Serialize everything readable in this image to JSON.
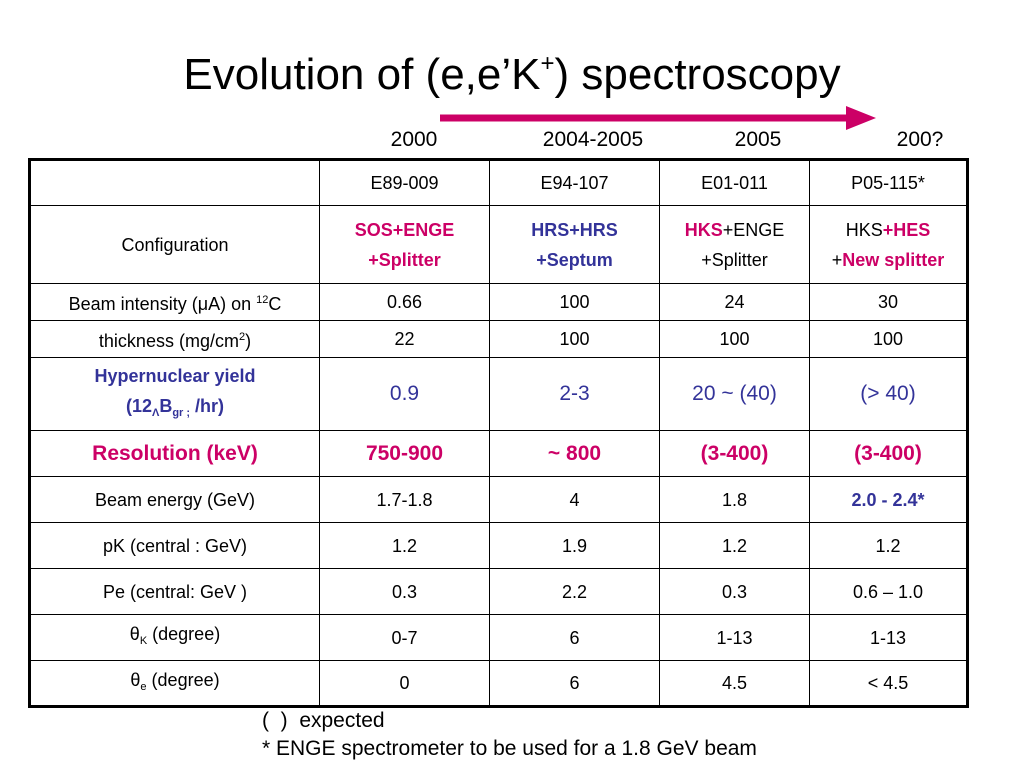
{
  "title": {
    "main": "Evolution of (e,e’K",
    "sup": "+",
    "tail": ") spectroscopy"
  },
  "colors": {
    "arrow": "#cc0066",
    "magenta": "#cc0066",
    "blue": "#333399"
  },
  "years": [
    "2000",
    "2004-2005",
    "2005",
    "200?"
  ],
  "experiments": [
    "E89-009",
    "E94-107",
    "E01-011",
    "P05-115*"
  ],
  "config": {
    "label": "Configuration",
    "c1": {
      "a": "SOS+ENGE",
      "b": "+Splitter"
    },
    "c2": {
      "a": "HRS+HRS",
      "b": "+Septum"
    },
    "c3": {
      "a1": "HKS",
      "a2": "+ENGE",
      "b": "+Splitter"
    },
    "c4": {
      "a1": "HKS",
      "a2": "+HES",
      "b1": "+",
      "b2": "New splitter"
    }
  },
  "beam_intensity": {
    "label_a": "Beam intensity (",
    "mu": "μ",
    "label_b": "A) on ",
    "sup": "12",
    "label_c": "C",
    "values": [
      "0.66",
      "100",
      "24",
      "30"
    ]
  },
  "thickness": {
    "label_a": "thickness (mg/cm",
    "sup": "2",
    "label_b": ")",
    "values": [
      "22",
      "100",
      "100",
      "100"
    ]
  },
  "yield": {
    "label1": "Hypernuclear yield",
    "label2_a": "(12",
    "lambda_sub": "Λ",
    "label2_b": "B",
    "gr_sub": "gr ;",
    "label2_c": " /hr)",
    "values": [
      "0.9",
      "2-3",
      "20 ~ (40)",
      "(> 40)"
    ]
  },
  "resolution": {
    "label": "Resolution (keV)",
    "values": [
      "750-900",
      "~ 800",
      "(3-400)",
      "(3-400)"
    ]
  },
  "beam_energy": {
    "label": "Beam energy (GeV)",
    "values": [
      "1.7-1.8",
      "4",
      "1.8",
      "2.0 - 2.4*"
    ]
  },
  "pk": {
    "label": "pK (central : GeV)",
    "values": [
      "1.2",
      "1.9",
      "1.2",
      "1.2"
    ]
  },
  "pe": {
    "label": "Pe (central: GeV )",
    "values": [
      "0.3",
      "2.2",
      "0.3",
      "0.6 – 1.0"
    ]
  },
  "theta_k": {
    "theta": "θ",
    "sub": "K",
    "label": " (degree)",
    "values": [
      "0-7",
      "6",
      "1-13",
      "1-13"
    ]
  },
  "theta_e": {
    "theta": "θ",
    "sub": "e",
    "label": " (degree)",
    "values": [
      "0",
      "6",
      "4.5",
      "< 4.5"
    ]
  },
  "footnotes": [
    "(  )  expected",
    "* ENGE spectrometer to be used for a 1.8 GeV beam"
  ]
}
